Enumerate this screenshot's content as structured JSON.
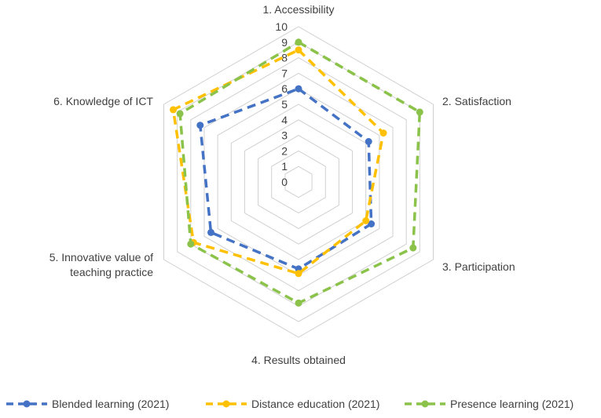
{
  "chart_data": {
    "type": "radar",
    "title": "",
    "categories": [
      "1. Accessibility",
      "2. Satisfaction",
      "3. Participation",
      "4. Results obtained",
      "5. Innovative value of teaching practice",
      "6. Knowledge of ICT"
    ],
    "category_lines": [
      [
        "1. Accessibility"
      ],
      [
        "2. Satisfaction"
      ],
      [
        "3. Participation"
      ],
      [
        "4. Results obtained"
      ],
      [
        "5. Innovative value of",
        "teaching practice"
      ],
      [
        "6. Knowledge of ICT"
      ]
    ],
    "radial_ticks": [
      "0",
      "1",
      "2",
      "3",
      "4",
      "5",
      "6",
      "7",
      "8",
      "9",
      "10"
    ],
    "rlim": [
      0,
      10
    ],
    "grid": true,
    "legend_position": "bottom",
    "series": [
      {
        "name": "Blended learning (2021)",
        "color": "#4472C4",
        "values": [
          6.0,
          5.2,
          5.4,
          5.6,
          6.5,
          7.3
        ]
      },
      {
        "name": "Distance education (2021)",
        "color": "#FFC000",
        "values": [
          8.5,
          6.3,
          5.0,
          5.9,
          7.8,
          9.3
        ]
      },
      {
        "name": "Presence learning (2021)",
        "color": "#8BC34A",
        "values": [
          9.0,
          9.0,
          8.5,
          7.8,
          8.0,
          8.8
        ]
      }
    ]
  }
}
